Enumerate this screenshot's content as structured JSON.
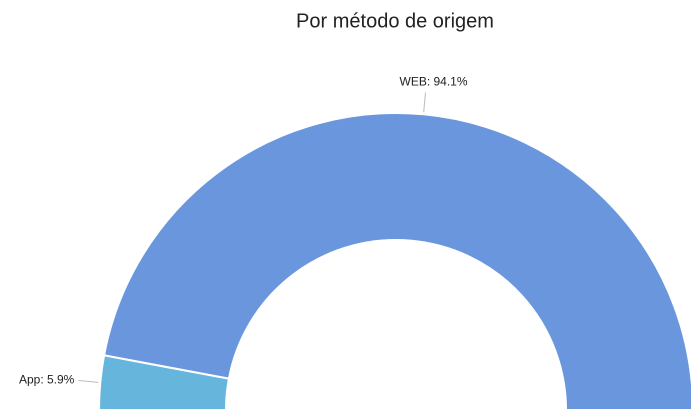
{
  "chart_data": {
    "type": "half-donut",
    "title": "Por método de origem",
    "categories": [
      "App",
      "WEB"
    ],
    "values": [
      5.9,
      94.1
    ],
    "value_labels": [
      "App: 5.9%",
      "WEB: 94.1%"
    ],
    "colors": [
      "#66b5dc",
      "#6a96de"
    ]
  }
}
